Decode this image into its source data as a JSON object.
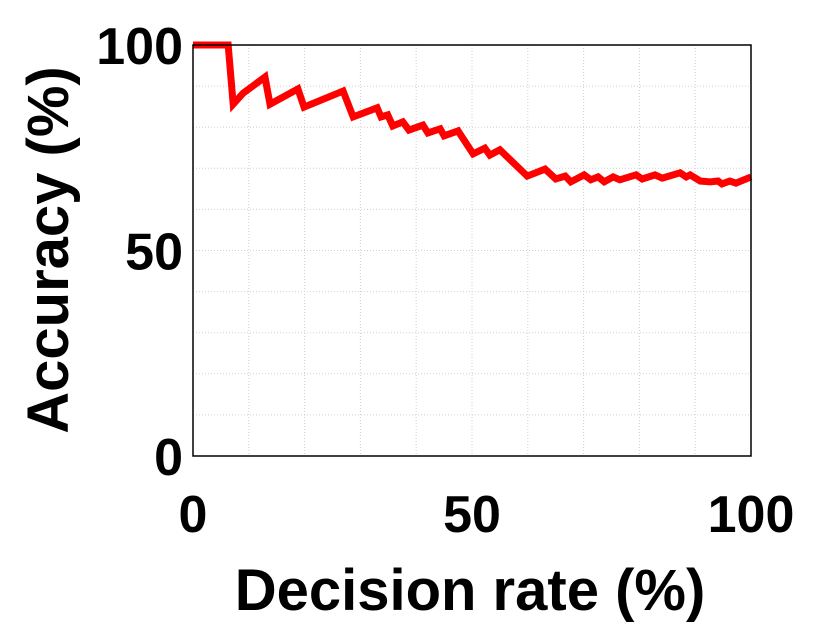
{
  "chart_data": {
    "type": "line",
    "xlabel": "Decision rate (%)",
    "ylabel": "Accuracy (%)",
    "xlim": [
      0,
      100
    ],
    "ylim": [
      0,
      100
    ],
    "xticks": [
      0,
      50,
      100
    ],
    "yticks": [
      0,
      50,
      100
    ],
    "xminorticks": [
      10,
      20,
      30,
      40,
      60,
      70,
      80,
      90
    ],
    "yminorticks": [
      10,
      20,
      30,
      40,
      60,
      70,
      80,
      90
    ],
    "grid": true,
    "x": [
      0,
      6.3,
      7.2,
      9,
      12.9,
      13.8,
      18.8,
      19.9,
      26.9,
      28.7,
      33,
      33.7,
      34.9,
      35.8,
      37.6,
      38.7,
      41.2,
      42.1,
      44.3,
      45,
      47.5,
      50.2,
      52.3,
      53.2,
      55,
      59.9,
      63.1,
      65,
      66.7,
      67.7,
      70.1,
      71.3,
      72.6,
      73.7,
      75.3,
      76.5,
      79.4,
      80.5,
      82.8,
      84.1,
      87.3,
      88.4,
      89.1,
      90.9,
      92.7,
      94.1,
      94.8,
      96.2,
      97.3,
      100
    ],
    "series": [
      {
        "color": "#ff0000",
        "values": [
          100,
          100,
          85.6,
          88.3,
          92.2,
          85.6,
          89.3,
          84.9,
          88.8,
          82.5,
          84.7,
          82.5,
          83,
          80.3,
          81.3,
          79.3,
          80.5,
          78.6,
          79.6,
          77.9,
          79.1,
          73.5,
          74.9,
          73.2,
          74.5,
          68.1,
          69.8,
          67.4,
          68.1,
          66.7,
          68.4,
          67.2,
          67.9,
          66.7,
          67.9,
          67.2,
          68.4,
          67.4,
          68.4,
          67.6,
          68.9,
          67.9,
          68.4,
          66.9,
          66.7,
          66.9,
          66.2,
          66.9,
          66.4,
          67.9
        ]
      }
    ]
  }
}
